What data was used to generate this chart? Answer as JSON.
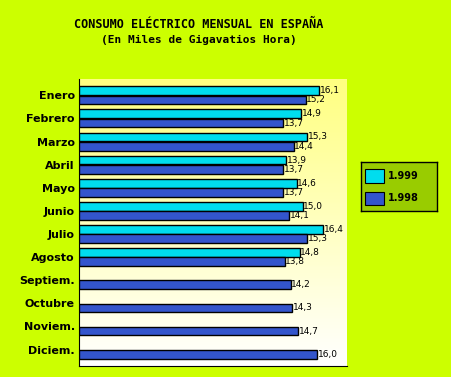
{
  "title": "CONSUMO ELÉCTRICO MENSUAL EN ESPAÑA",
  "subtitle": "(En Miles de Gigavatios Hora)",
  "months": [
    "Enero",
    "Febrero",
    "Marzo",
    "Abril",
    "Mayo",
    "Junio",
    "Julio",
    "Agosto",
    "Septiem.",
    "Octubre",
    "Noviem.",
    "Diciem."
  ],
  "values_1999": [
    16.1,
    14.9,
    15.3,
    13.9,
    14.6,
    15.0,
    16.4,
    14.8,
    null,
    null,
    null,
    null
  ],
  "values_1998": [
    15.2,
    13.7,
    14.4,
    13.7,
    13.7,
    14.1,
    15.3,
    13.8,
    14.2,
    14.3,
    14.7,
    16.0
  ],
  "color_1999": "#00DDEE",
  "color_1998": "#3355CC",
  "background_outer": "#CCFF00",
  "legend_bg": "#99CC00",
  "legend_1999": "1.999",
  "legend_1998": "1.998",
  "bar_height": 0.38,
  "title_color": "#000000"
}
